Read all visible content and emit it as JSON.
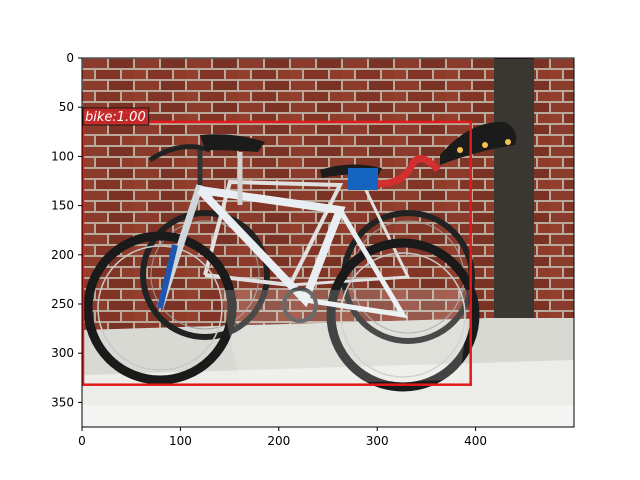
{
  "figure": {
    "image_extent": {
      "x_max": 500,
      "y_max": 375
    },
    "x_ticks": [
      0,
      100,
      200,
      300,
      400
    ],
    "y_ticks": [
      0,
      50,
      100,
      150,
      200,
      250,
      300,
      350
    ]
  },
  "detections": [
    {
      "label": "bike:1.00",
      "box": {
        "x1": 0,
        "y1": 65,
        "x2": 395,
        "y2": 332
      },
      "color": "#e31a1c"
    }
  ],
  "colors": {
    "brick": "#8a3b2b",
    "mortar": "#b8a99a",
    "floor": "#d9d9d4",
    "box": "#e31a1c",
    "label_bg": "#c62828"
  }
}
